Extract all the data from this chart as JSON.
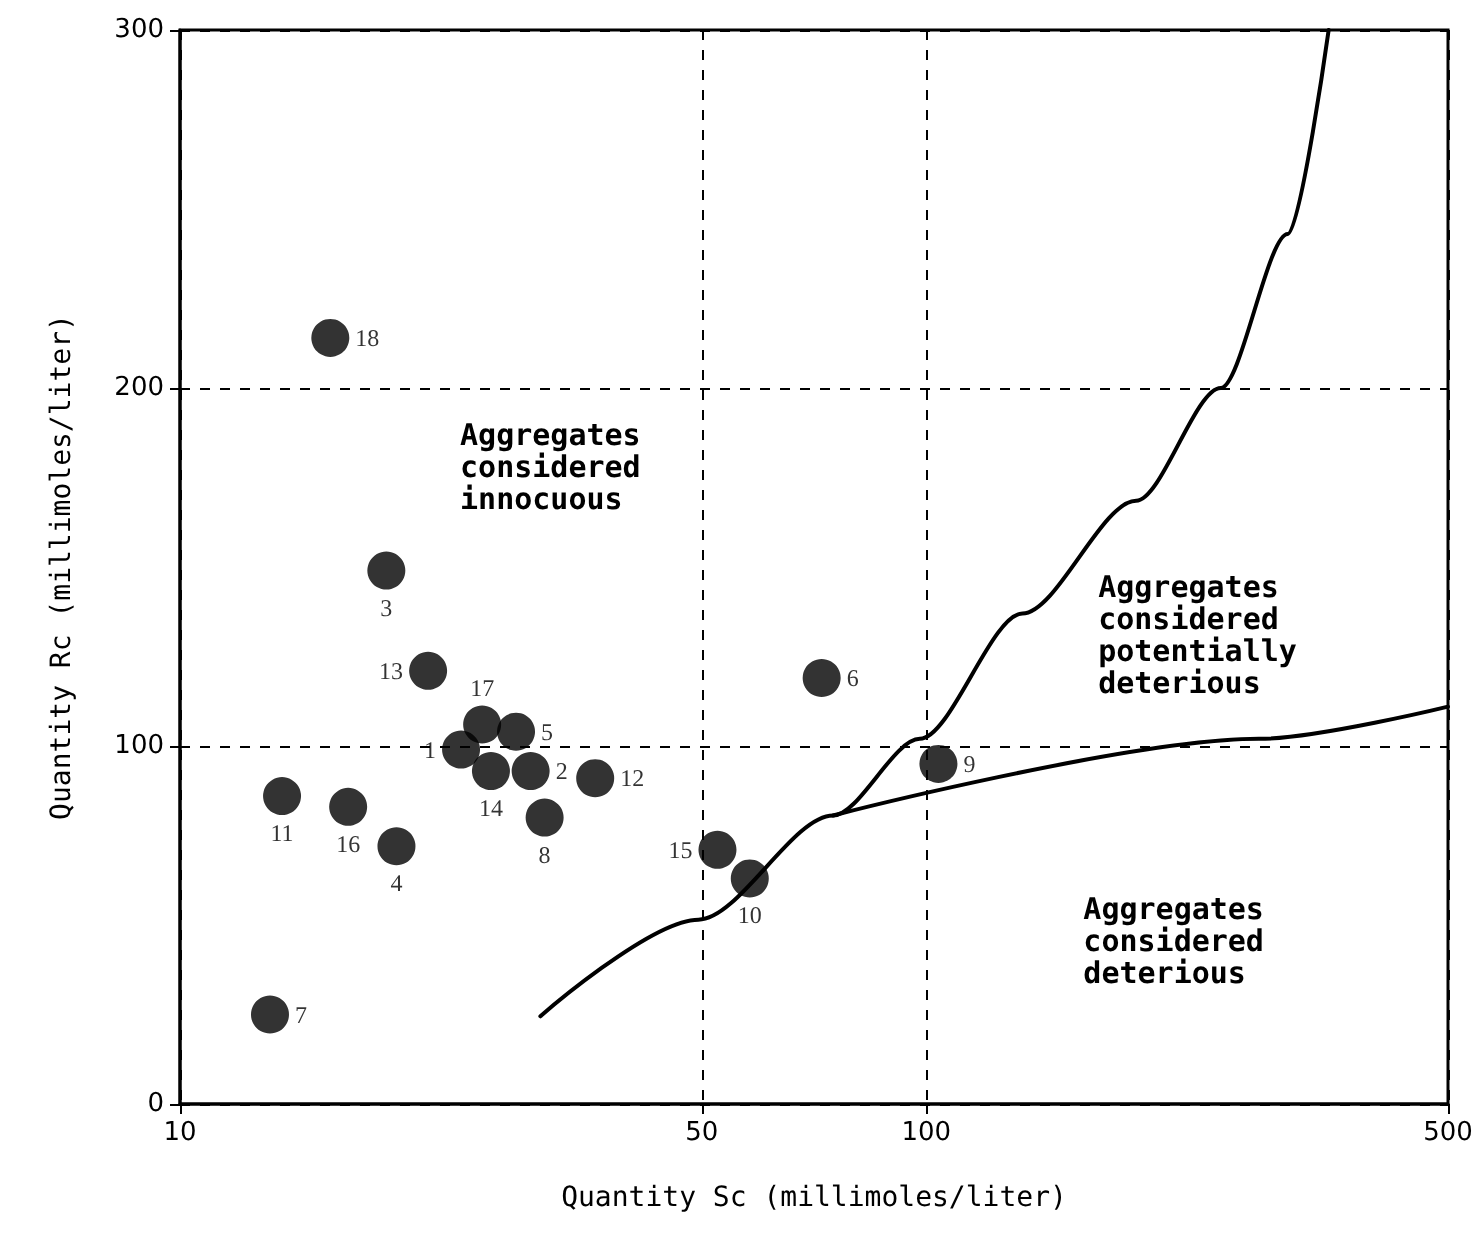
{
  "chart_data": {
    "type": "scatter",
    "xlabel": "Quantity Sc (millimoles/liter)",
    "ylabel": "Quantity Rc (millimoles/liter)",
    "log": "x",
    "xlim": [
      10,
      500
    ],
    "xticks": [
      10,
      50,
      100,
      500
    ],
    "ylim": [
      0,
      300
    ],
    "yticks": [
      0,
      100,
      200,
      300
    ],
    "grid": true,
    "legend": false,
    "marker": "circle",
    "series": [
      {
        "name": "1",
        "color": "#000000",
        "x": [
          23.8
        ],
        "values": [
          99
        ]
      },
      {
        "name": "2",
        "color": "#000000",
        "x": [
          29.5
        ],
        "values": [
          93
        ]
      },
      {
        "name": "3",
        "color": "#000000",
        "x": [
          18.9
        ],
        "values": [
          149
        ]
      },
      {
        "name": "4",
        "color": "#000000",
        "x": [
          19.5
        ],
        "values": [
          72
        ]
      },
      {
        "name": "5",
        "color": "#000000",
        "x": [
          28.2
        ],
        "values": [
          104
        ]
      },
      {
        "name": "6",
        "color": "#000000",
        "x": [
          72.4
        ],
        "values": [
          119
        ]
      },
      {
        "name": "7",
        "color": "#000000",
        "x": [
          13.2
        ],
        "values": [
          25
        ]
      },
      {
        "name": "8",
        "color": "#000000",
        "x": [
          30.8
        ],
        "values": [
          80
        ]
      },
      {
        "name": "9",
        "color": "#000000",
        "x": [
          103.8
        ],
        "values": [
          95
        ]
      },
      {
        "name": "10",
        "color": "#000000",
        "x": [
          58
        ],
        "values": [
          63
        ]
      },
      {
        "name": "11",
        "color": "#000000",
        "x": [
          13.7
        ],
        "values": [
          86
        ]
      },
      {
        "name": "12",
        "color": "#000000",
        "x": [
          36
        ],
        "values": [
          91
        ]
      },
      {
        "name": "13",
        "color": "#000000",
        "x": [
          21.5
        ],
        "values": [
          121
        ]
      },
      {
        "name": "14",
        "color": "#000000",
        "x": [
          26.1
        ],
        "values": [
          93
        ]
      },
      {
        "name": "15",
        "color": "#000000",
        "x": [
          52.5
        ],
        "values": [
          71
        ]
      },
      {
        "name": "16",
        "color": "#000000",
        "x": [
          16.8
        ],
        "values": [
          83
        ]
      },
      {
        "name": "17",
        "color": "#000000",
        "x": [
          25.4
        ],
        "values": [
          106
        ]
      },
      {
        "name": "18",
        "color": "#000000",
        "x": [
          15.9
        ],
        "values": [
          214
        ]
      },
      {
        "type": "line",
        "color": "#000000",
        "marker": "none",
        "line_style": "solid",
        "x": [
          30.4,
          49.5,
          75,
          98,
          134.5,
          191,
          248,
          305,
          346
        ],
        "values": [
          24.5,
          51.5,
          80.6,
          102,
          137,
          168.5,
          200,
          243,
          300
        ]
      },
      {
        "type": "line",
        "color": "#000000",
        "marker": "none",
        "line_style": "solid",
        "x": [
          75,
          279,
          500
        ],
        "values": [
          80.6,
          102,
          111
        ]
      }
    ],
    "annotations": [
      "Aggregates\nconsidered\ninnocuous",
      "Aggregates\nconsidered\npotentially\ndeterious",
      "Aggregates\nconsidered\ndeterious"
    ]
  }
}
